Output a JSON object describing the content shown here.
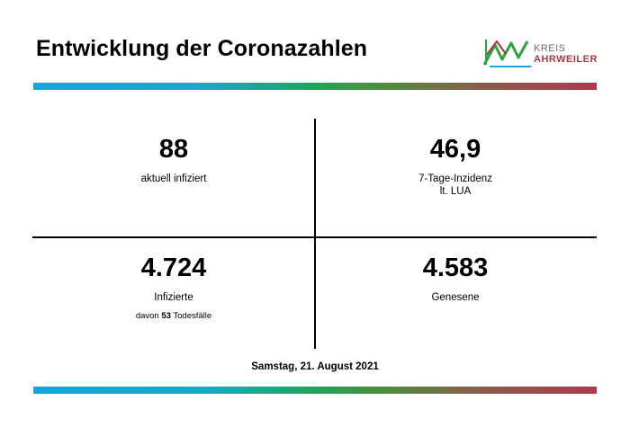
{
  "header": {
    "title": "Entwicklung der Coronazahlen",
    "logo": {
      "line1": "KREIS",
      "line2": "AHRWEILER",
      "colors": [
        "#2f9f3f",
        "#a23b47",
        "#17a6db"
      ]
    }
  },
  "stats": {
    "infected_now": {
      "value": "88",
      "label": "aktuell infiziert"
    },
    "incidence": {
      "value": "46,9",
      "label_line1": "7-Tage-Inzidenz",
      "label_line2": "lt. LUA"
    },
    "total_infected": {
      "value": "4.724",
      "label": "Infizierte",
      "deaths_prefix": "davon",
      "deaths_value": "53",
      "deaths_suffix": "Todesfälle"
    },
    "recovered": {
      "value": "4.583",
      "label": "Genesene"
    }
  },
  "footer": {
    "date": "Samstag, 21. August 2021"
  },
  "colors": {
    "gradient": [
      "#17a6db",
      "#21a35a",
      "#ad3a4d"
    ]
  }
}
